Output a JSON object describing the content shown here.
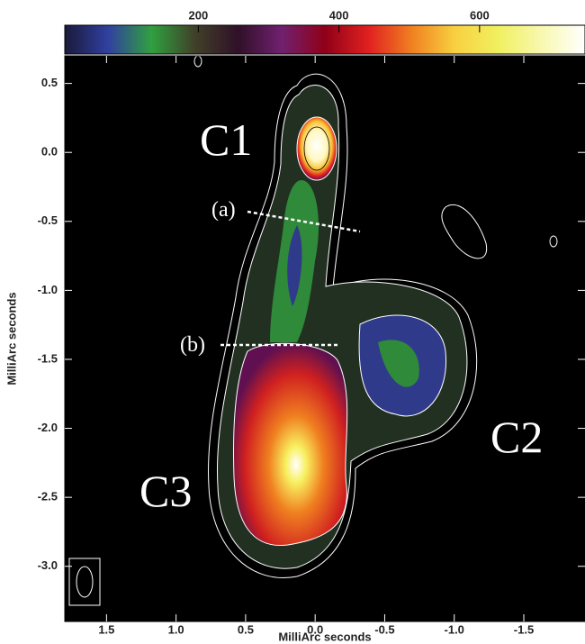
{
  "chart_data": {
    "type": "image",
    "xlabel": "MilliArc seconds",
    "ylabel": "MilliArc seconds",
    "xlim": [
      1.8,
      -1.94
    ],
    "ylim": [
      -3.4,
      0.7
    ],
    "xticks": [
      1.5,
      {
        "value": 1,
        "label": "1.0"
      },
      0.5,
      {
        "value": 0,
        "label": "0.0"
      },
      -0.5,
      {
        "value": -1,
        "label": "-1.0"
      },
      -1.5
    ],
    "yticks": [
      0.5,
      {
        "value": 0,
        "label": "0.0"
      },
      -0.5,
      {
        "value": -1,
        "label": "-1.0"
      },
      -1.5,
      {
        "value": -2,
        "label": "-2.0"
      },
      -2.5,
      {
        "value": -3,
        "label": "-3.0"
      }
    ],
    "colorbar": {
      "lim": [
        10,
        750
      ],
      "ticks": [
        200,
        400,
        600
      ],
      "colors": [
        "#1a1a3a",
        "#3040a0",
        "#30a040",
        "#404028",
        "#301028",
        "#702070",
        "#900018",
        "#e02020",
        "#f08020",
        "#f8d040",
        "#f0f060",
        "#f8f8b0",
        "#ffffff"
      ]
    },
    "annotations": [
      "C1",
      "C2",
      "C3",
      "(a)",
      "(b)"
    ]
  }
}
